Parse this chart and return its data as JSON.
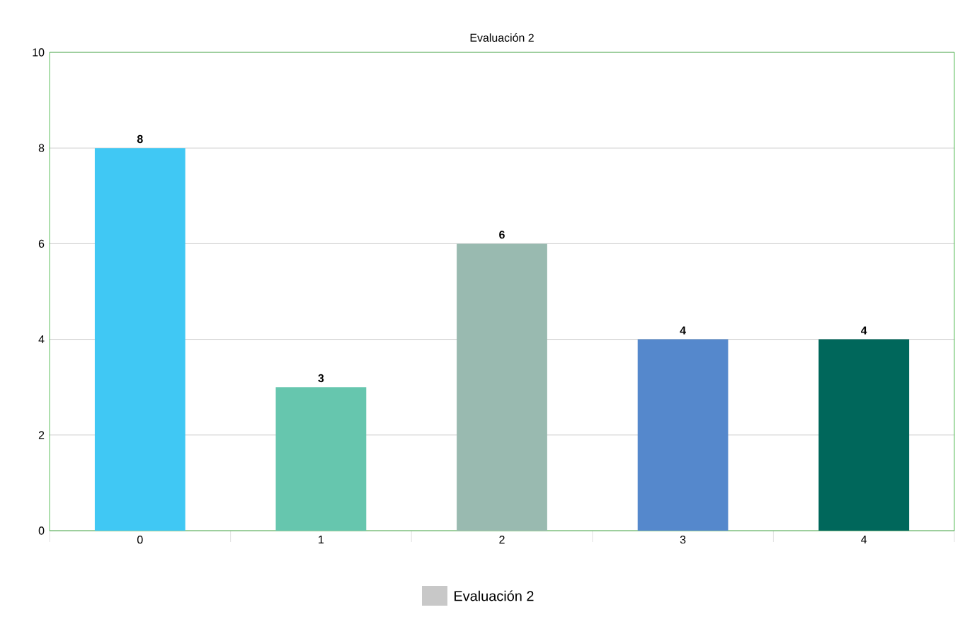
{
  "chart_data": {
    "type": "bar",
    "title": "Evaluación 2",
    "categories": [
      "0",
      "1",
      "2",
      "3",
      "4"
    ],
    "series": [
      {
        "name": "Evaluación 2",
        "color": "#c8c8c8",
        "colors": [
          "#40c8f4",
          "#66c6ae",
          "#99bab0",
          "#5588cc",
          "#00675b"
        ],
        "values": [
          8,
          3,
          6,
          4,
          4
        ]
      }
    ],
    "ylim": [
      0,
      10
    ],
    "yticks": [
      0,
      2,
      4,
      6,
      8,
      10
    ],
    "grid": "y",
    "legend": "bottom",
    "data_labels": true
  }
}
